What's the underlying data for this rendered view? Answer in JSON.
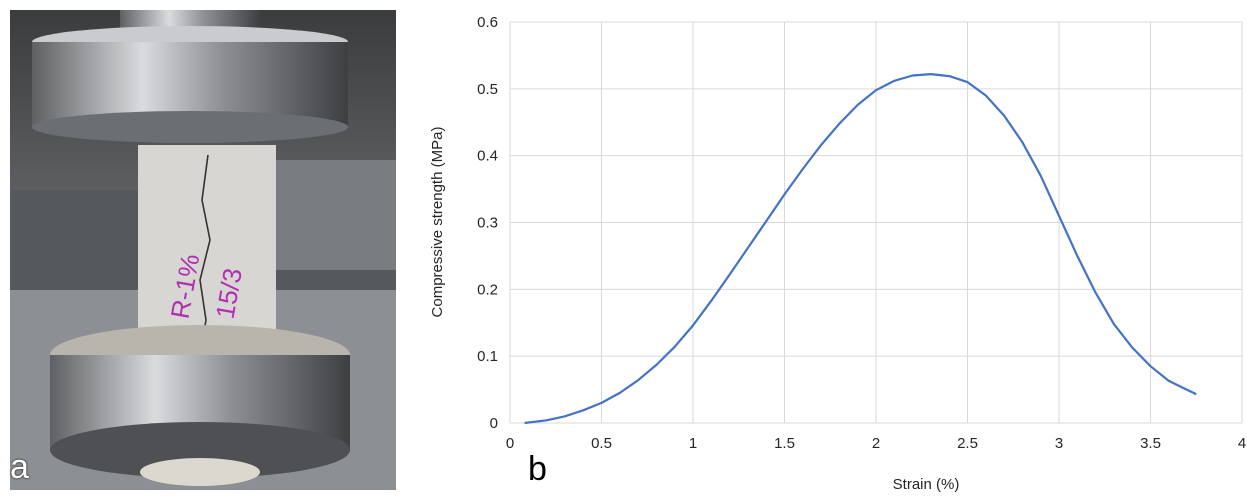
{
  "panel_a": {
    "label": "a",
    "specimen_marking": [
      "R-1%",
      "15/3"
    ]
  },
  "panel_b": {
    "label": "b"
  },
  "chart_data": {
    "type": "line",
    "xlabel": "Strain (%)",
    "ylabel": "Compressive strength (MPa)",
    "xlim": [
      0,
      4
    ],
    "ylim": [
      0,
      0.6
    ],
    "xticks": [
      "0",
      "0.5",
      "1",
      "1.5",
      "2",
      "2.5",
      "3",
      "3.5",
      "4"
    ],
    "yticks": [
      "0",
      "0.1",
      "0.2",
      "0.3",
      "0.4",
      "0.5",
      "0.6"
    ],
    "grid": true,
    "line_color": "#4472C4",
    "series": [
      {
        "x": [
          0.08,
          0.2,
          0.3,
          0.4,
          0.5,
          0.6,
          0.7,
          0.8,
          0.9,
          1.0,
          1.1,
          1.2,
          1.3,
          1.4,
          1.5,
          1.6,
          1.7,
          1.8,
          1.9,
          2.0,
          2.1,
          2.2,
          2.3,
          2.4,
          2.5,
          2.6,
          2.7,
          2.8,
          2.9,
          3.0,
          3.1,
          3.2,
          3.3,
          3.4,
          3.5,
          3.6,
          3.75
        ],
        "y": [
          0.0,
          0.004,
          0.01,
          0.019,
          0.03,
          0.045,
          0.064,
          0.087,
          0.114,
          0.146,
          0.183,
          0.222,
          0.262,
          0.302,
          0.342,
          0.38,
          0.416,
          0.448,
          0.476,
          0.498,
          0.512,
          0.52,
          0.522,
          0.519,
          0.51,
          0.49,
          0.46,
          0.42,
          0.37,
          0.31,
          0.25,
          0.195,
          0.148,
          0.113,
          0.085,
          0.063,
          0.043
        ]
      }
    ]
  }
}
